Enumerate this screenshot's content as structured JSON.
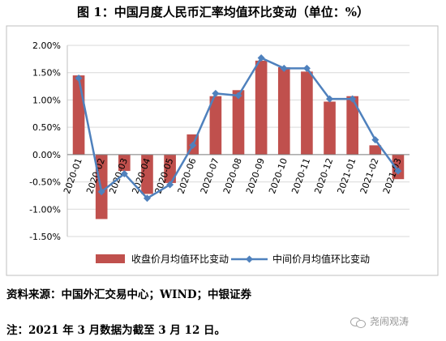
{
  "title": "图 1：中国月度人民币汇率均值环比变动（单位：%）",
  "source": "资料来源：中国外汇交易中心；WIND；中银证券",
  "note": "注：2021 年 3 月数据为截至 3 月 12 日。",
  "watermark": "尧闹观涛",
  "colors": {
    "bar": "#c0504d",
    "line": "#4f81bd"
  },
  "chart_data": {
    "type": "bar",
    "categories": [
      "2020-01",
      "2020-02",
      "2020-03",
      "2020-04",
      "2020-05",
      "2020-06",
      "2020-07",
      "2020-08",
      "2020-09",
      "2020-10",
      "2020-11",
      "2020-12",
      "2021-01",
      "2021-02",
      "2021-03"
    ],
    "ylim": [
      -1.5,
      2.0
    ],
    "yticks": [
      "2.00%",
      "1.50%",
      "1.00%",
      "0.50%",
      "0.00%",
      "-0.50%",
      "-1.00%",
      "-1.50%"
    ],
    "ytick_values": [
      2.0,
      1.5,
      1.0,
      0.5,
      0.0,
      -0.5,
      -1.0,
      -1.5
    ],
    "grid": true,
    "legend_position": "bottom",
    "series": [
      {
        "name": "收盘价月均值环比变动",
        "type": "bar",
        "values": [
          1.45,
          -1.18,
          -0.3,
          -0.72,
          -0.52,
          0.37,
          1.07,
          1.18,
          1.72,
          1.6,
          1.52,
          0.97,
          1.07,
          0.17,
          -0.45
        ]
      },
      {
        "name": "中间价月均值环比变动",
        "type": "line",
        "values": [
          1.4,
          -0.68,
          -0.35,
          -0.8,
          -0.55,
          0.17,
          1.12,
          1.08,
          1.77,
          1.58,
          1.58,
          1.02,
          1.02,
          0.27,
          -0.3
        ]
      }
    ]
  }
}
